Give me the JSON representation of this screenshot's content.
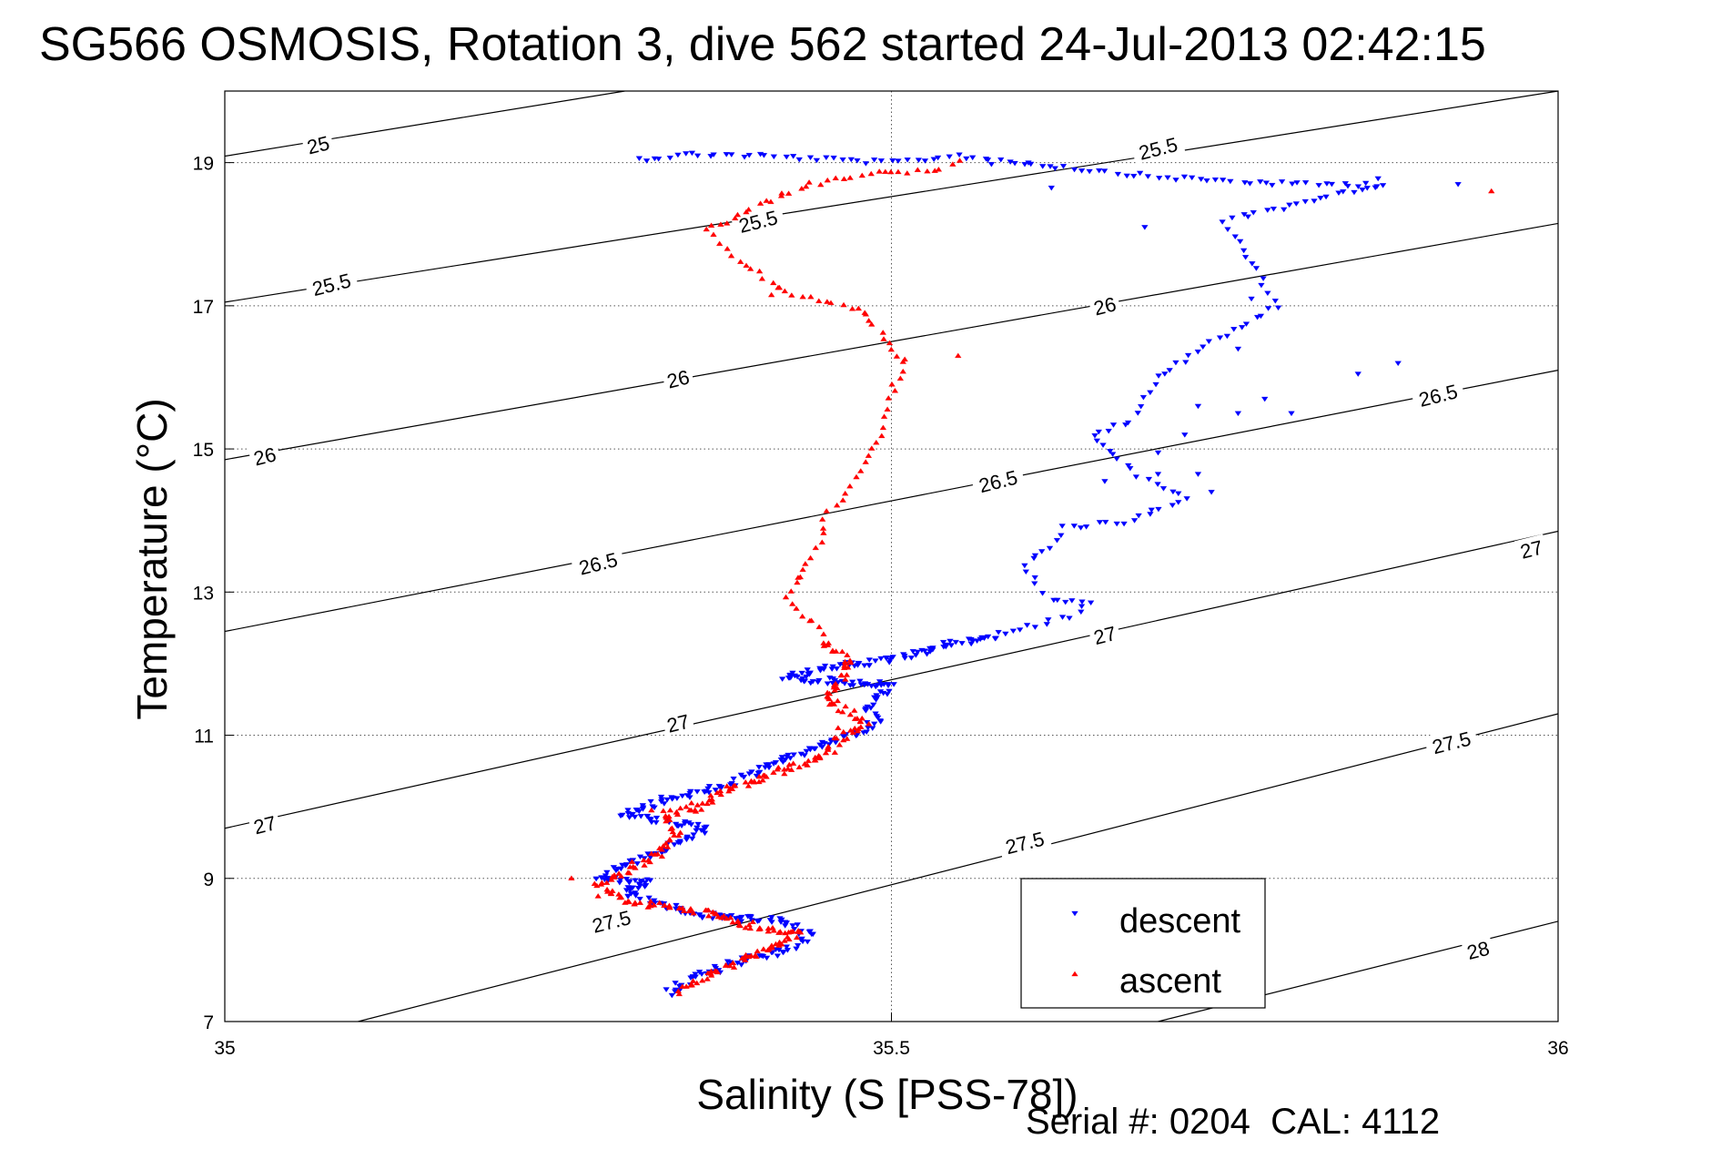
{
  "chart_data": {
    "type": "scatter",
    "title": "SG566 OSMOSIS, Rotation 3, dive 562 started 24-Jul-2013 02:42:15",
    "xlabel": "Salinity (S [PSS-78])",
    "ylabel": "Temperature (°C)",
    "xlim": [
      35,
      36
    ],
    "ylim": [
      7,
      20
    ],
    "xticks": [
      35,
      35.5,
      36
    ],
    "xtick_labels": [
      "35",
      "35.5",
      "36"
    ],
    "yticks": [
      7,
      9,
      11,
      13,
      15,
      17,
      19
    ],
    "ytick_labels": [
      "7",
      "9",
      "11",
      "13",
      "15",
      "17",
      "19"
    ],
    "grid": "dotted",
    "legend_position": "lower-right",
    "footer": "Serial #: 0204  CAL: 4112",
    "contours": [
      {
        "label": "25",
        "start": [
          35,
          19.09
        ],
        "end": [
          35.3,
          20.0
        ]
      },
      {
        "label": "25.5",
        "start": [
          35,
          17.05
        ],
        "end": [
          36,
          20.0
        ]
      },
      {
        "label": "26",
        "start": [
          35,
          14.85
        ],
        "end": [
          36,
          18.15
        ]
      },
      {
        "label": "26.5",
        "start": [
          35,
          12.45
        ],
        "end": [
          36,
          16.1
        ]
      },
      {
        "label": "27",
        "start": [
          35,
          9.7
        ],
        "end": [
          36,
          13.85
        ]
      },
      {
        "label": "27.5",
        "start": [
          35.1,
          7.0
        ],
        "end": [
          36,
          11.3
        ]
      },
      {
        "label": "28",
        "start": [
          35.7,
          7.0
        ],
        "end": [
          36,
          8.4
        ]
      }
    ],
    "contour_labels": [
      {
        "text": "25",
        "x": 35.07,
        "y": 19.25,
        "rotate": -14
      },
      {
        "text": "25.5",
        "x": 35.4,
        "y": 18.18,
        "rotate": -14
      },
      {
        "text": "25.5",
        "x": 35.08,
        "y": 17.3,
        "rotate": -14
      },
      {
        "text": "25.5",
        "x": 35.7,
        "y": 19.2,
        "rotate": -14
      },
      {
        "text": "26",
        "x": 35.34,
        "y": 15.98,
        "rotate": -14
      },
      {
        "text": "26",
        "x": 35.03,
        "y": 14.9,
        "rotate": -14
      },
      {
        "text": "26",
        "x": 35.66,
        "y": 17.0,
        "rotate": -14
      },
      {
        "text": "26.5",
        "x": 35.28,
        "y": 13.4,
        "rotate": -14
      },
      {
        "text": "26.5",
        "x": 35.58,
        "y": 14.55,
        "rotate": -14
      },
      {
        "text": "26.5",
        "x": 35.91,
        "y": 15.75,
        "rotate": -14
      },
      {
        "text": "27",
        "x": 35.34,
        "y": 11.17,
        "rotate": -14
      },
      {
        "text": "27",
        "x": 35.03,
        "y": 9.75,
        "rotate": -14
      },
      {
        "text": "27",
        "x": 35.66,
        "y": 12.4,
        "rotate": -14
      },
      {
        "text": "27",
        "x": 35.98,
        "y": 13.6,
        "rotate": -14
      },
      {
        "text": "27.5",
        "x": 35.29,
        "y": 8.4,
        "rotate": -14
      },
      {
        "text": "27.5",
        "x": 35.6,
        "y": 9.5,
        "rotate": -14
      },
      {
        "text": "27.5",
        "x": 35.92,
        "y": 10.9,
        "rotate": -14
      },
      {
        "text": "28",
        "x": 35.94,
        "y": 8.0,
        "rotate": -14
      }
    ],
    "series": [
      {
        "name": "descent",
        "color": "#0000ff",
        "marker": "triangle-down",
        "path": [
          [
            35.31,
            19.05
          ],
          [
            35.35,
            19.12
          ],
          [
            35.4,
            19.1
          ],
          [
            35.45,
            19.05
          ],
          [
            35.5,
            19.0
          ],
          [
            35.55,
            19.1
          ],
          [
            35.6,
            19.0
          ],
          [
            35.65,
            18.9
          ],
          [
            35.7,
            18.8
          ],
          [
            35.75,
            18.75
          ],
          [
            35.8,
            18.7
          ],
          [
            35.87,
            18.7
          ],
          [
            35.75,
            18.2
          ],
          [
            35.79,
            17.0
          ],
          [
            35.75,
            16.6
          ],
          [
            35.7,
            16.0
          ],
          [
            35.68,
            15.4
          ],
          [
            35.65,
            15.2
          ],
          [
            35.68,
            14.7
          ],
          [
            35.72,
            14.3
          ],
          [
            35.68,
            14.0
          ],
          [
            35.63,
            13.9
          ],
          [
            35.62,
            13.6
          ],
          [
            35.6,
            13.4
          ],
          [
            35.61,
            13.1
          ],
          [
            35.62,
            12.9
          ],
          [
            35.65,
            12.85
          ],
          [
            35.64,
            12.7
          ],
          [
            35.62,
            12.6
          ],
          [
            35.58,
            12.4
          ],
          [
            35.55,
            12.3
          ],
          [
            35.5,
            12.05
          ],
          [
            35.45,
            11.95
          ],
          [
            35.42,
            11.8
          ],
          [
            35.5,
            11.7
          ],
          [
            35.48,
            11.4
          ],
          [
            35.49,
            11.2
          ],
          [
            35.47,
            11.0
          ],
          [
            35.44,
            10.8
          ],
          [
            35.41,
            10.6
          ],
          [
            35.38,
            10.3
          ],
          [
            35.33,
            10.1
          ],
          [
            35.3,
            9.9
          ],
          [
            35.36,
            9.7
          ],
          [
            35.33,
            9.4
          ],
          [
            35.3,
            9.2
          ],
          [
            35.28,
            9.0
          ],
          [
            35.32,
            8.95
          ],
          [
            35.3,
            8.8
          ],
          [
            35.35,
            8.5
          ],
          [
            35.42,
            8.4
          ],
          [
            35.44,
            8.2
          ],
          [
            35.42,
            8.0
          ],
          [
            35.38,
            7.8
          ],
          [
            35.35,
            7.6
          ],
          [
            35.33,
            7.38
          ]
        ],
        "extra_points": [
          [
            35.575,
            18.98
          ],
          [
            35.6,
            18.98
          ],
          [
            35.62,
            18.65
          ],
          [
            35.69,
            18.1
          ],
          [
            35.865,
            18.78
          ],
          [
            35.925,
            18.7
          ],
          [
            35.77,
            17.1
          ],
          [
            35.76,
            16.4
          ],
          [
            35.85,
            16.05
          ],
          [
            35.88,
            16.2
          ],
          [
            35.73,
            15.6
          ],
          [
            35.8,
            15.5
          ],
          [
            35.74,
            14.4
          ],
          [
            35.7,
            14.95
          ],
          [
            35.78,
            15.7
          ],
          [
            35.72,
            15.2
          ],
          [
            35.76,
            15.5
          ],
          [
            35.66,
            14.55
          ],
          [
            35.7,
            14.65
          ],
          [
            35.73,
            14.65
          ]
        ]
      },
      {
        "name": "ascent",
        "color": "#ff0000",
        "marker": "triangle-up",
        "path": [
          [
            35.55,
            19.0
          ],
          [
            35.53,
            18.9
          ],
          [
            35.49,
            18.85
          ],
          [
            35.44,
            18.7
          ],
          [
            35.42,
            18.55
          ],
          [
            35.4,
            18.4
          ],
          [
            35.38,
            18.2
          ],
          [
            35.36,
            18.05
          ],
          [
            35.38,
            17.7
          ],
          [
            35.42,
            17.2
          ],
          [
            35.48,
            16.9
          ],
          [
            35.51,
            16.2
          ],
          [
            35.5,
            15.8
          ],
          [
            35.49,
            15.2
          ],
          [
            35.48,
            14.8
          ],
          [
            35.47,
            14.5
          ],
          [
            35.45,
            14.0
          ],
          [
            35.45,
            13.8
          ],
          [
            35.44,
            13.5
          ],
          [
            35.43,
            13.2
          ],
          [
            35.42,
            12.9
          ],
          [
            35.44,
            12.6
          ],
          [
            35.45,
            12.3
          ],
          [
            35.47,
            12.0
          ],
          [
            35.46,
            11.7
          ],
          [
            35.45,
            11.5
          ],
          [
            35.47,
            11.3
          ],
          [
            35.48,
            11.15
          ],
          [
            35.46,
            10.95
          ],
          [
            35.45,
            10.7
          ],
          [
            35.41,
            10.45
          ],
          [
            35.37,
            10.2
          ],
          [
            35.36,
            10.0
          ],
          [
            35.33,
            9.9
          ],
          [
            35.34,
            9.6
          ],
          [
            35.33,
            9.4
          ],
          [
            35.3,
            9.1
          ],
          [
            35.28,
            8.9
          ],
          [
            35.3,
            8.7
          ],
          [
            35.33,
            8.6
          ],
          [
            35.37,
            8.5
          ],
          [
            35.4,
            8.3
          ],
          [
            35.43,
            8.25
          ],
          [
            35.41,
            8.0
          ],
          [
            35.38,
            7.8
          ],
          [
            35.35,
            7.55
          ],
          [
            35.34,
            7.38
          ]
        ],
        "extra_points": [
          [
            35.95,
            18.6
          ],
          [
            35.415,
            17.25
          ],
          [
            35.41,
            17.15
          ],
          [
            35.48,
            16.9
          ],
          [
            35.51,
            16.25
          ],
          [
            35.55,
            16.3
          ],
          [
            35.43,
            13.2
          ],
          [
            35.44,
            12.6
          ],
          [
            35.46,
            11.1
          ],
          [
            35.35,
            10.05
          ],
          [
            35.32,
            9.95
          ],
          [
            35.26,
            9.0
          ],
          [
            35.28,
            8.75
          ]
        ]
      }
    ]
  },
  "legend": {
    "items": [
      {
        "label": "descent",
        "color": "#0000ff",
        "marker": "triangle-down"
      },
      {
        "label": "ascent",
        "color": "#ff0000",
        "marker": "triangle-up"
      }
    ]
  }
}
